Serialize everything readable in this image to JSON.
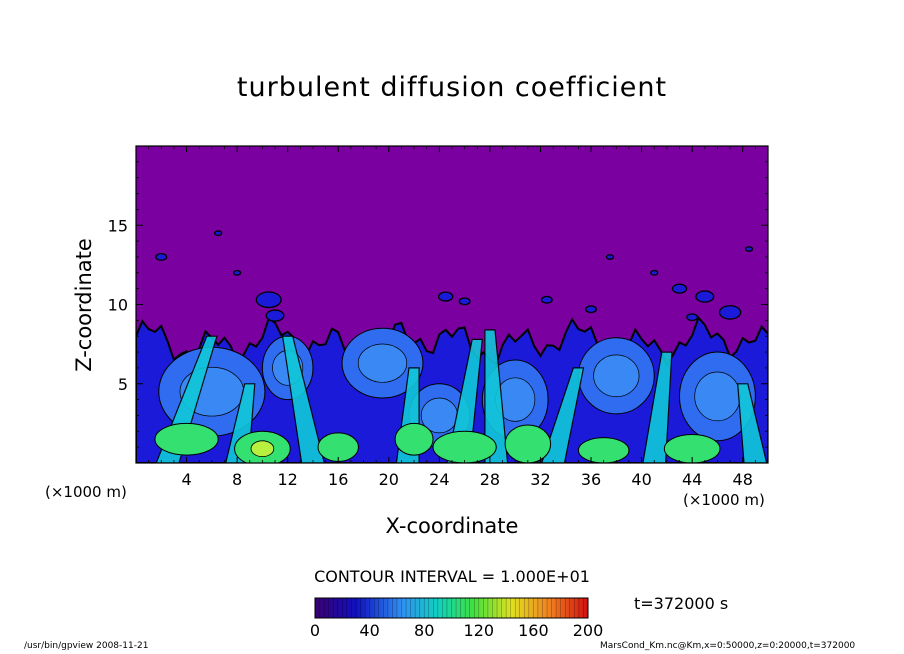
{
  "chart_data": {
    "type": "heatmap",
    "title": "turbulent diffusion coefficient",
    "xlabel": "X-coordinate",
    "ylabel": "Z-coordinate",
    "x_unit": "(×1000 m)",
    "xlim": [
      0,
      50
    ],
    "ylim": [
      0,
      20
    ],
    "x_ticks": [
      "4",
      "8",
      "12",
      "16",
      "20",
      "24",
      "28",
      "32",
      "36",
      "40",
      "44",
      "48"
    ],
    "y_ticks": [
      "5",
      "10",
      "15"
    ],
    "colorbar": {
      "range": [
        0,
        200
      ],
      "ticks": [
        "0",
        "40",
        "80",
        "120",
        "160",
        "200"
      ]
    },
    "contour_interval_text": "CONTOUR INTERVAL = 1.000E+01",
    "time_text": "t=372000 s",
    "colors": {
      "background_low": "#7a00a0",
      "dark_blue": "#1a1ad8",
      "blue": "#2f6cf0",
      "cyan": "#10c8d8",
      "green": "#33e070",
      "yellowgreen": "#b8f040",
      "red": "#e03010"
    }
  },
  "footer": {
    "left": "/usr/bin/gpview   2008-11-21",
    "right": "MarsCond_Km.nc@Km,x=0:50000,z=0:20000,t=372000"
  }
}
